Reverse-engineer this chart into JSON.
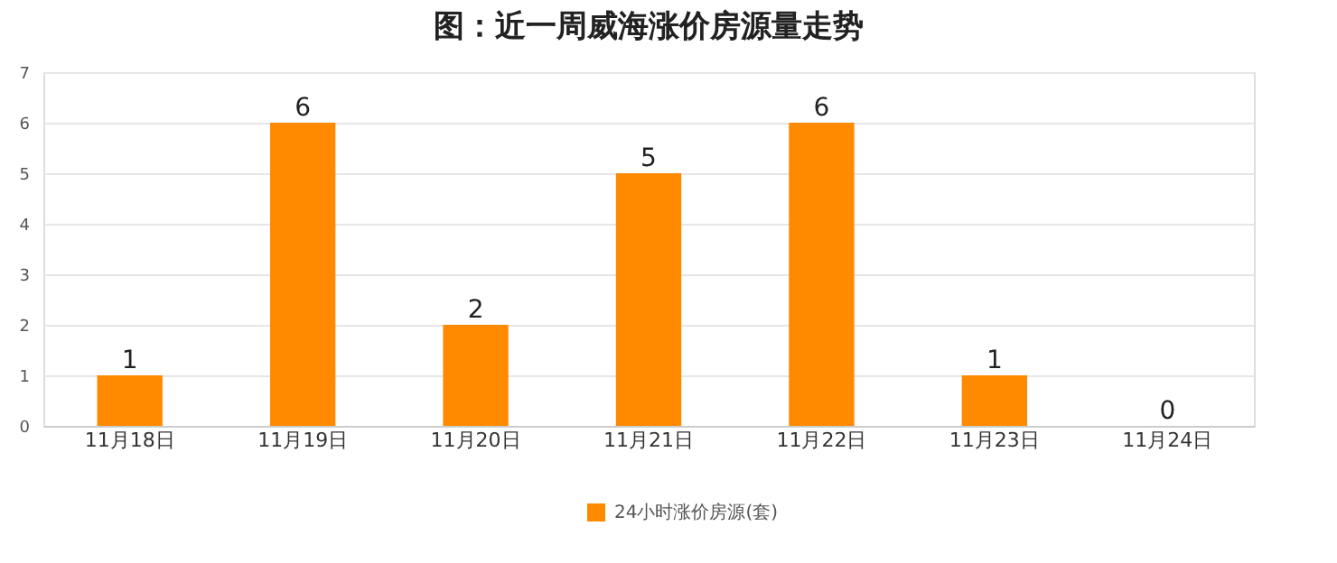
{
  "chart_data": {
    "type": "bar",
    "title": "图：近一周威海涨价房源量走势",
    "categories": [
      "11月18日",
      "11月19日",
      "11月20日",
      "11月21日",
      "11月22日",
      "11月23日",
      "11月24日"
    ],
    "series": [
      {
        "name": "24小时涨价房源(套)",
        "color": "#ff8a00",
        "values": [
          1,
          6,
          2,
          5,
          6,
          1,
          0
        ]
      }
    ],
    "ylim": [
      0,
      7
    ],
    "yticks": [
      0,
      1,
      2,
      3,
      4,
      5,
      6,
      7
    ],
    "grid": "y",
    "data_labels": true,
    "legend": "bottom"
  }
}
